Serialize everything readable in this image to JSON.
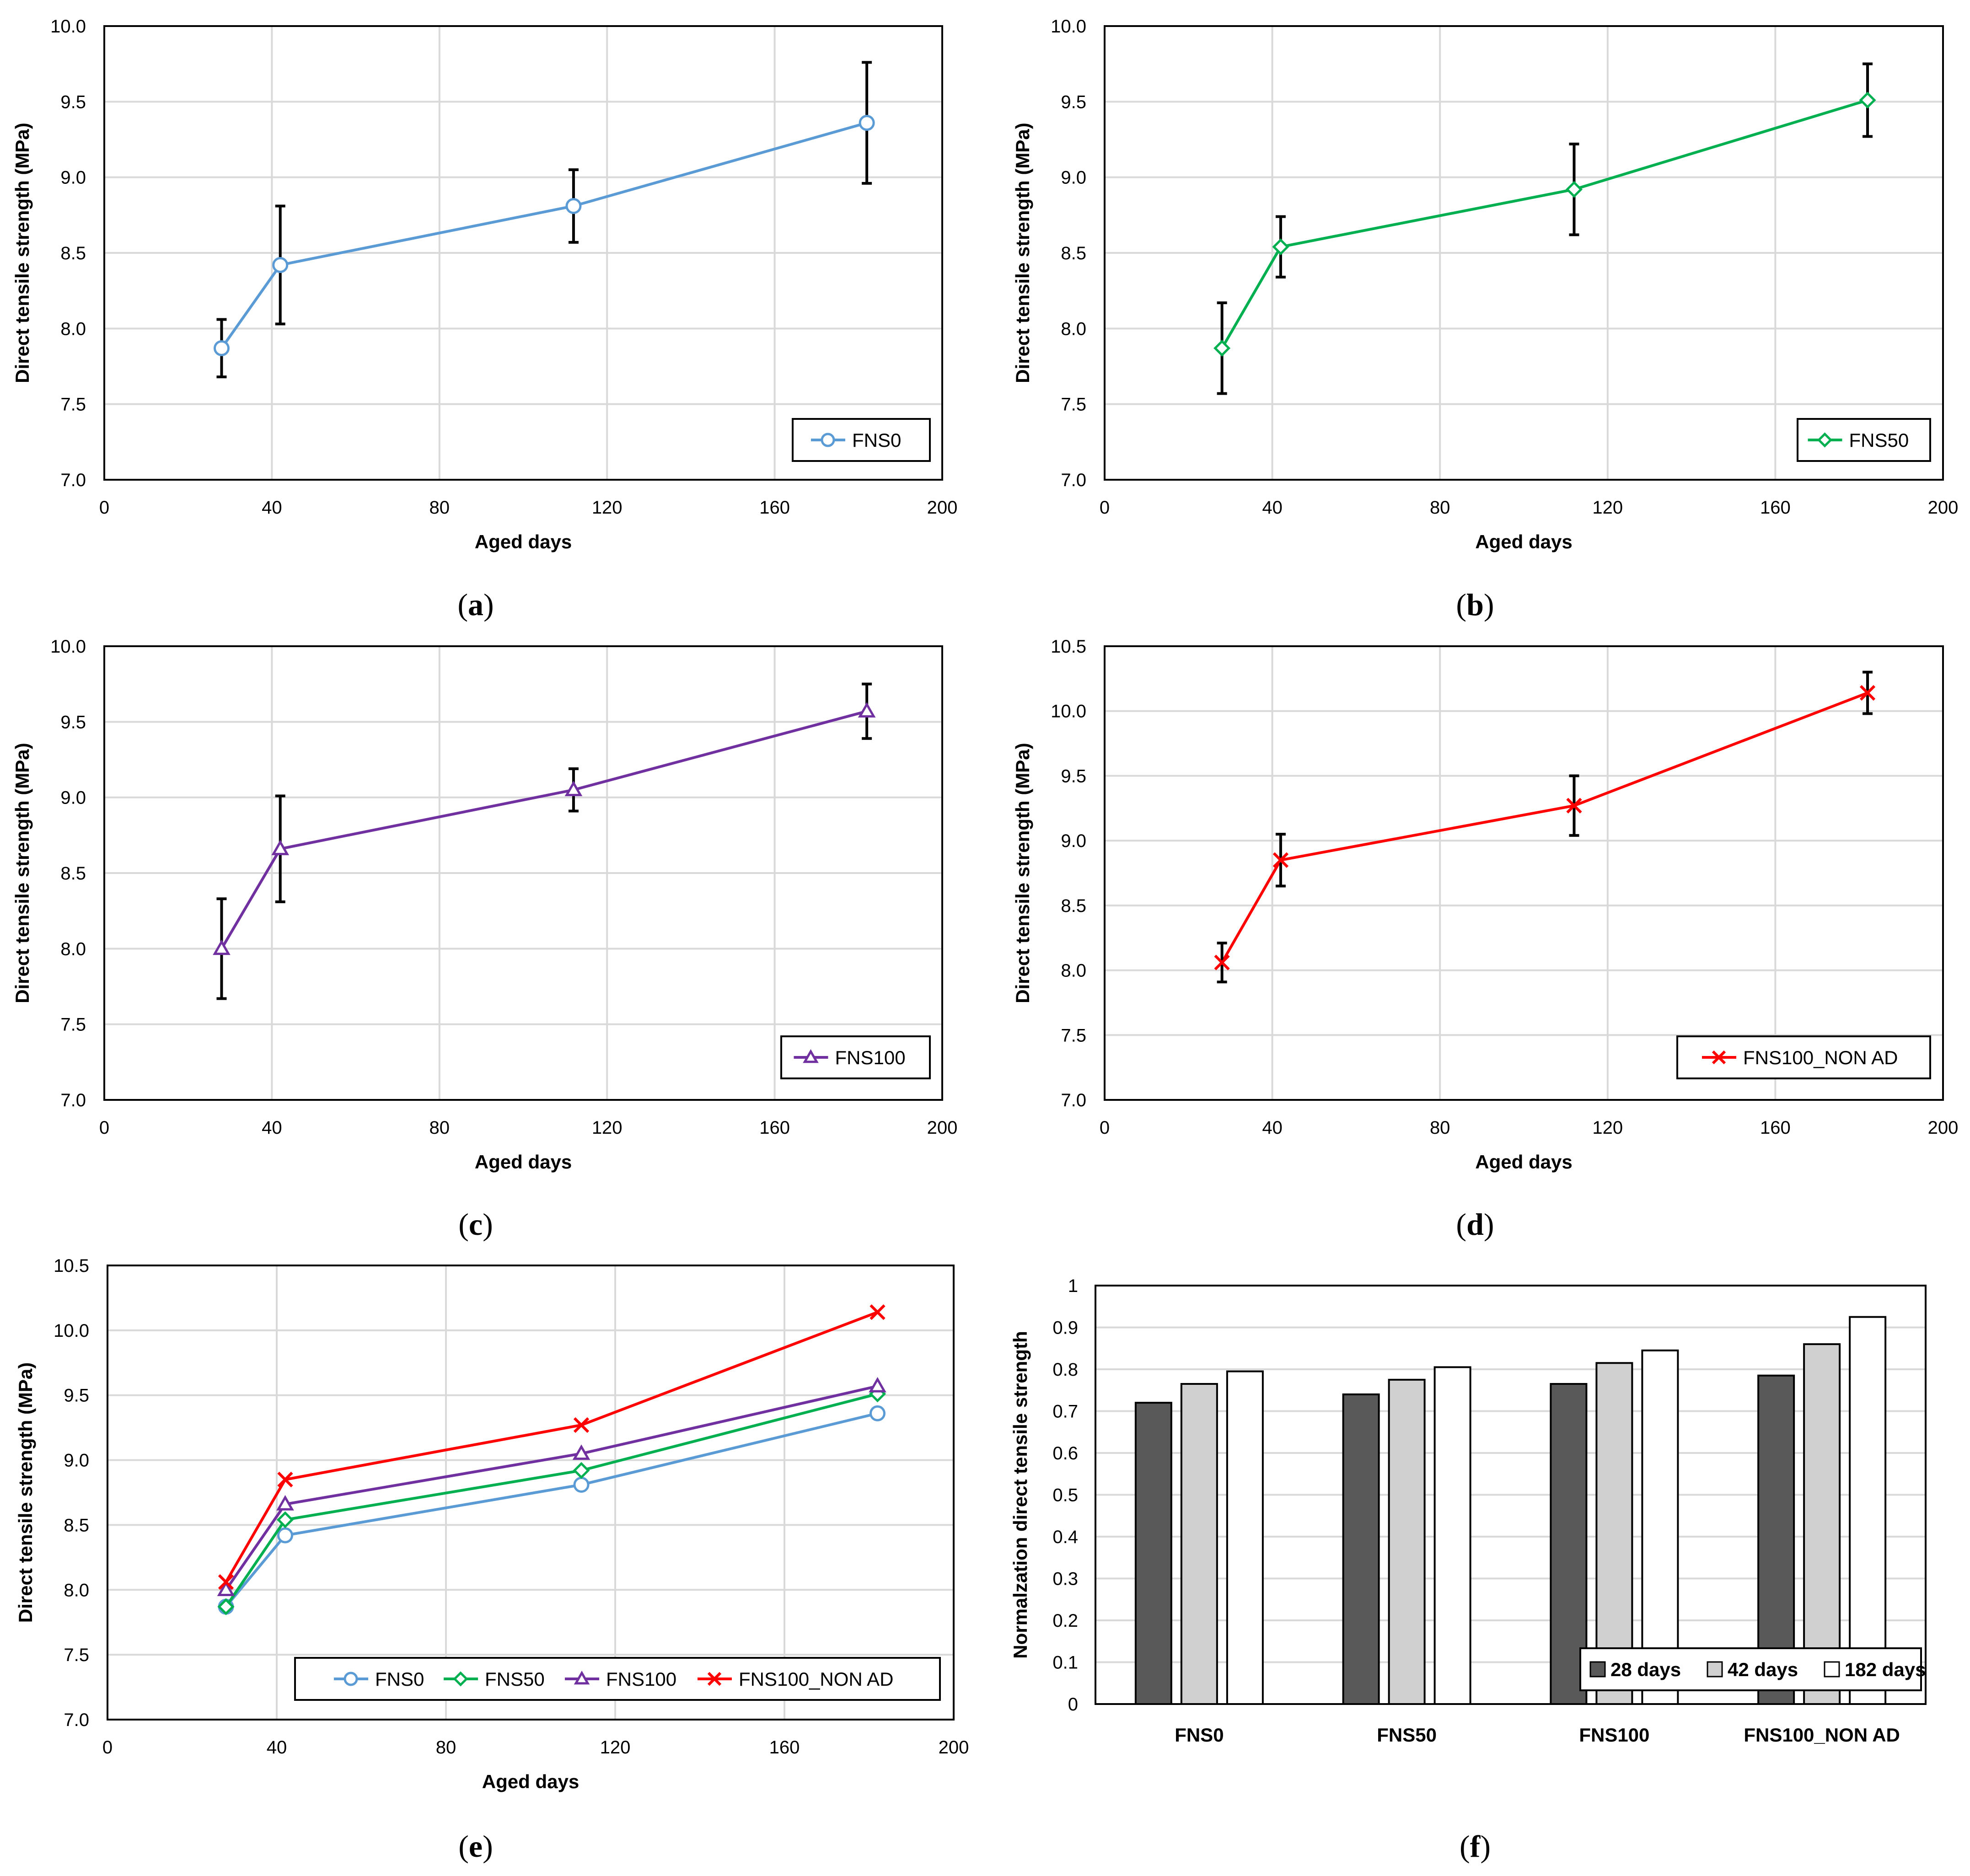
{
  "chart_data": [
    {
      "id": "a",
      "type": "line",
      "caption_letter": "a",
      "xlabel": "Aged days",
      "ylabel": "Direct tensile strength (MPa)",
      "xlim": [
        0,
        200
      ],
      "ylim": [
        7.0,
        10.0
      ],
      "x_ticks": [
        "0",
        "40",
        "80",
        "120",
        "160",
        "200"
      ],
      "y_ticks": [
        "7.0",
        "7.5",
        "8.0",
        "8.5",
        "9.0",
        "9.5",
        "10.0"
      ],
      "grid": true,
      "legend_position": "bottom-right",
      "series": [
        {
          "name": "FNS0",
          "color": "#5B9BD5",
          "marker": "circle",
          "x": [
            28,
            42,
            112,
            182
          ],
          "y": [
            7.87,
            8.42,
            8.81,
            9.36
          ],
          "error": [
            0.19,
            0.39,
            0.24,
            0.4
          ]
        }
      ]
    },
    {
      "id": "b",
      "type": "line",
      "caption_letter": "b",
      "xlabel": "Aged days",
      "ylabel": "Direct tensile strength (MPa)",
      "xlim": [
        0,
        200
      ],
      "ylim": [
        7.0,
        10.0
      ],
      "x_ticks": [
        "0",
        "40",
        "80",
        "120",
        "160",
        "200"
      ],
      "y_ticks": [
        "7.0",
        "7.5",
        "8.0",
        "8.5",
        "9.0",
        "9.5",
        "10.0"
      ],
      "grid": true,
      "legend_position": "bottom-right",
      "series": [
        {
          "name": "FNS50",
          "color": "#00B050",
          "marker": "diamond",
          "x": [
            28,
            42,
            112,
            182
          ],
          "y": [
            7.87,
            8.54,
            8.92,
            9.51
          ],
          "error": [
            0.3,
            0.2,
            0.3,
            0.24
          ]
        }
      ]
    },
    {
      "id": "c",
      "type": "line",
      "caption_letter": "c",
      "xlabel": "Aged days",
      "ylabel": "Direct tensile strength (MPa)",
      "xlim": [
        0,
        200
      ],
      "ylim": [
        7.0,
        10.0
      ],
      "x_ticks": [
        "0",
        "40",
        "80",
        "120",
        "160",
        "200"
      ],
      "y_ticks": [
        "7.0",
        "7.5",
        "8.0",
        "8.5",
        "9.0",
        "9.5",
        "10.0"
      ],
      "grid": true,
      "legend_position": "bottom-right",
      "series": [
        {
          "name": "FNS100",
          "color": "#7030A0",
          "marker": "triangle",
          "x": [
            28,
            42,
            112,
            182
          ],
          "y": [
            8.0,
            8.66,
            9.05,
            9.57
          ],
          "error": [
            0.33,
            0.35,
            0.14,
            0.18
          ]
        }
      ]
    },
    {
      "id": "d",
      "type": "line",
      "caption_letter": "d",
      "xlabel": "Aged days",
      "ylabel": "Direct tensile strength (MPa)",
      "xlim": [
        0,
        200
      ],
      "ylim": [
        7.0,
        10.5
      ],
      "x_ticks": [
        "0",
        "40",
        "80",
        "120",
        "160",
        "200"
      ],
      "y_ticks": [
        "7.0",
        "7.5",
        "8.0",
        "8.5",
        "9.0",
        "9.5",
        "10.0",
        "10.5"
      ],
      "grid": true,
      "legend_position": "bottom-right",
      "series": [
        {
          "name": "FNS100_NON AD",
          "color": "#FF0000",
          "marker": "x",
          "x": [
            28,
            42,
            112,
            182
          ],
          "y": [
            8.06,
            8.85,
            9.27,
            10.14
          ],
          "error": [
            0.15,
            0.2,
            0.23,
            0.16
          ]
        }
      ]
    },
    {
      "id": "e",
      "type": "line",
      "caption_letter": "e",
      "xlabel": "Aged days",
      "ylabel": "Direct tensile strength (MPa)",
      "xlim": [
        0,
        200
      ],
      "ylim": [
        7.0,
        10.5
      ],
      "x_ticks": [
        "0",
        "40",
        "80",
        "120",
        "160",
        "200"
      ],
      "y_ticks": [
        "7.0",
        "7.5",
        "8.0",
        "8.5",
        "9.0",
        "9.5",
        "10.0",
        "10.5"
      ],
      "grid": true,
      "legend_position": "bottom",
      "series": [
        {
          "name": "FNS0",
          "color": "#5B9BD5",
          "marker": "circle",
          "x": [
            28,
            42,
            112,
            182
          ],
          "y": [
            7.87,
            8.42,
            8.81,
            9.36
          ]
        },
        {
          "name": "FNS50",
          "color": "#00B050",
          "marker": "diamond",
          "x": [
            28,
            42,
            112,
            182
          ],
          "y": [
            7.87,
            8.54,
            8.92,
            9.51
          ]
        },
        {
          "name": "FNS100",
          "color": "#7030A0",
          "marker": "triangle",
          "x": [
            28,
            42,
            112,
            182
          ],
          "y": [
            8.0,
            8.66,
            9.05,
            9.57
          ]
        },
        {
          "name": "FNS100_NON AD",
          "color": "#FF0000",
          "marker": "x",
          "x": [
            28,
            42,
            112,
            182
          ],
          "y": [
            8.06,
            8.85,
            9.27,
            10.14
          ]
        }
      ]
    },
    {
      "id": "f",
      "type": "bar",
      "caption_letter": "f",
      "xlabel": "",
      "ylabel": "Normalzation direct tensile strength",
      "ylim": [
        0,
        1
      ],
      "y_ticks": [
        "0",
        "0.1",
        "0.2",
        "0.3",
        "0.4",
        "0.5",
        "0.6",
        "0.7",
        "0.8",
        "0.9",
        "1"
      ],
      "grid": true,
      "legend_position": "bottom-right",
      "categories": [
        "FNS0",
        "FNS50",
        "FNS100",
        "FNS100_NON AD"
      ],
      "series": [
        {
          "name": "28 days",
          "color": "#595959",
          "values": [
            0.72,
            0.74,
            0.765,
            0.785
          ]
        },
        {
          "name": "42 days",
          "color": "#D0D0D0",
          "values": [
            0.765,
            0.775,
            0.815,
            0.86
          ]
        },
        {
          "name": "182 days",
          "color": "#FFFFFF",
          "values": [
            0.795,
            0.805,
            0.845,
            0.925
          ]
        }
      ]
    }
  ]
}
